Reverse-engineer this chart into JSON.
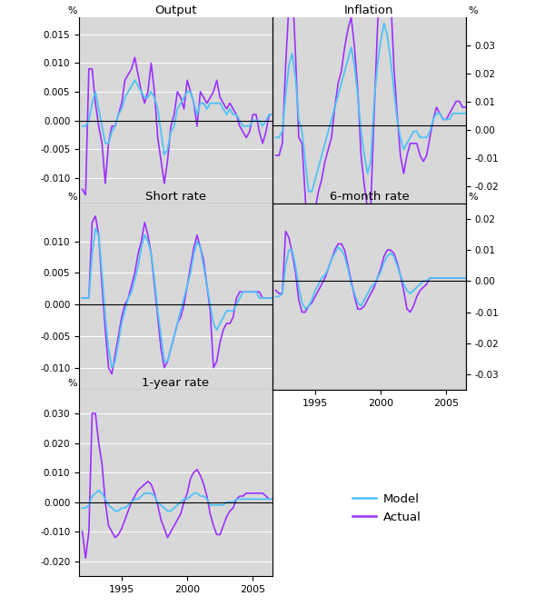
{
  "model_color": "#4FC3F7",
  "actual_color": "#9B30FF",
  "bg_color": "#D8D8D8",
  "panel_layout": [
    {
      "title": "Output",
      "row": 0,
      "col": 0,
      "ylim": [
        -0.0145,
        0.018
      ],
      "yticks": [
        -0.01,
        -0.005,
        0.0,
        0.005,
        0.01,
        0.015
      ],
      "yticks_r": null,
      "ylim_r": null
    },
    {
      "title": "Inflation",
      "row": 0,
      "col": 1,
      "ylim": [
        -0.013,
        0.018
      ],
      "yticks": null,
      "yticks_r": [
        -0.02,
        -0.01,
        0.0,
        0.01,
        0.02,
        0.03
      ],
      "ylim_r": [
        -0.026,
        0.04
      ]
    },
    {
      "title": "Short rate",
      "row": 1,
      "col": 0,
      "ylim": [
        -0.0135,
        0.016
      ],
      "yticks": [
        -0.01,
        -0.005,
        0.0,
        0.005,
        0.01
      ],
      "yticks_r": null,
      "ylim_r": null
    },
    {
      "title": "6-month rate",
      "row": 1,
      "col": 1,
      "ylim": [
        -0.035,
        0.025
      ],
      "yticks": null,
      "yticks_r": [
        -0.03,
        -0.02,
        -0.01,
        0.0,
        0.01,
        0.02
      ],
      "ylim_r": [
        -0.035,
        0.025
      ]
    },
    {
      "title": "1-year rate",
      "row": 2,
      "col": 0,
      "ylim": [
        -0.025,
        0.038
      ],
      "yticks": [
        -0.02,
        -0.01,
        0.0,
        0.01,
        0.02,
        0.03
      ],
      "yticks_r": null,
      "ylim_r": null
    }
  ],
  "xlim": [
    1991.75,
    2006.5
  ],
  "xticks": [
    1995,
    2000,
    2005
  ],
  "lw_model": 1.3,
  "lw_actual": 1.2
}
